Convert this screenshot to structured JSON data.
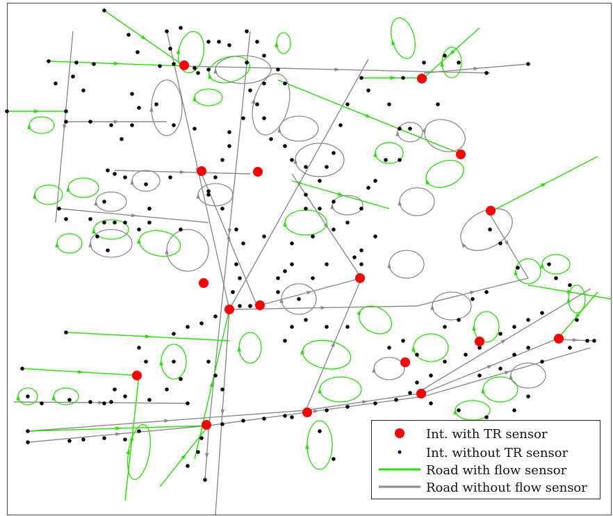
{
  "legend": {
    "items": [
      {
        "label": "Int. with TR sensor",
        "kind": "big-dot"
      },
      {
        "label": "Int. without TR sensor",
        "kind": "small-dot"
      },
      {
        "label": "Road with flow sensor",
        "kind": "line"
      },
      {
        "label": "Road without flow sensor",
        "kind": "line"
      }
    ]
  },
  "colors": {
    "tr_sensor": "#ff0000",
    "intersection": "#000000",
    "legend_small_dot": "#0b1a6e",
    "road_with_flow_sensor": "#22e000",
    "road_without_flow_sensor": "#8a8a8a"
  }
}
